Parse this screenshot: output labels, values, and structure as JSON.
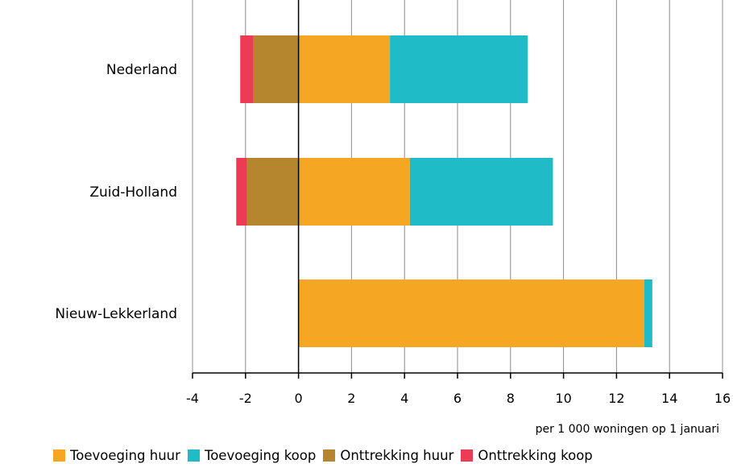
{
  "chart_data": {
    "type": "bar",
    "orientation": "horizontal",
    "stacked": true,
    "categories": [
      "Nederland",
      "Zuid-Holland",
      "Nieuw-Lekkerland"
    ],
    "series": [
      {
        "name": "Toevoeging huur",
        "values": [
          3.45,
          4.2,
          13.05
        ],
        "color": "#F5A623"
      },
      {
        "name": "Toevoeging koop",
        "values": [
          5.2,
          5.4,
          0.3
        ],
        "color": "#1FBBC6"
      },
      {
        "name": "Onttrekking huur",
        "values": [
          -1.7,
          -1.95,
          0
        ],
        "color": "#B5862E"
      },
      {
        "name": "Onttrekking koop",
        "values": [
          -0.5,
          -0.4,
          0
        ],
        "color": "#EE3B55"
      }
    ],
    "xlim": [
      -4,
      16
    ],
    "xticks": [
      -4,
      -2,
      0,
      2,
      4,
      6,
      8,
      10,
      12,
      14,
      16
    ],
    "xtick_labels": [
      "-4",
      "-2",
      "0",
      "2",
      "4",
      "6",
      "8",
      "10",
      "12",
      "14",
      "16"
    ],
    "xlabel": "per 1 000 woningen op 1 januari",
    "grid": true,
    "legend_position": "bottom"
  }
}
